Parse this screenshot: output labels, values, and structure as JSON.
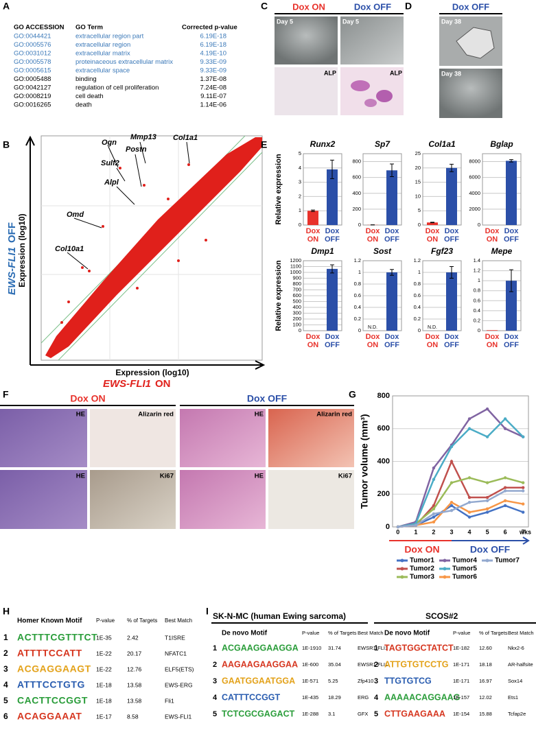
{
  "panel_letters": [
    "A",
    "B",
    "C",
    "D",
    "E",
    "F",
    "G",
    "H",
    "I"
  ],
  "go_table": {
    "headers": [
      "GO ACCESSION",
      "GO Term",
      "Corrected p-value"
    ],
    "rows": [
      [
        "GO:0044421",
        "extracellular region part",
        "6.19E-18"
      ],
      [
        "GO:0005576",
        "extracellular region",
        "6.19E-18"
      ],
      [
        "GO:0031012",
        "extracellular matrix",
        "4.19E-10"
      ],
      [
        "GO:0005578",
        "proteinaceous extracellular matrix",
        "9.33E-09"
      ],
      [
        "GO:0005615",
        "extracellular space",
        "9.33E-09"
      ],
      [
        "GO:0005488",
        "binding",
        "1.37E-08"
      ],
      [
        "GO:0042127",
        "regulation of cell proliferation",
        "7.24E-08"
      ],
      [
        "GO:0008219",
        "cell death",
        "9.11E-07"
      ],
      [
        "GO:0016265",
        "death",
        "1.14E-06"
      ]
    ],
    "highlight_color": "#3a78b8"
  },
  "scatter": {
    "genes": [
      "Ogn",
      "Mmp13",
      "Col1a1",
      "Sulf2",
      "Postn",
      "Alpl",
      "Omd",
      "Col10a1"
    ],
    "x_label": "Expression (log10)",
    "x_gene": "EWS-FLI1",
    "x_state": "ON",
    "y_label": "Expression (log10)",
    "y_gene": "EWS-FLI1",
    "y_state": "OFF"
  },
  "micrographs": {
    "c_headers": [
      "Dox ON",
      "Dox OFF"
    ],
    "c_labels": [
      "Day 5",
      "Day 5",
      "ALP",
      "ALP"
    ],
    "d_header": "Dox OFF",
    "d_labels": [
      "Day 38",
      "Day 38"
    ]
  },
  "histology": {
    "headers": [
      "Dox ON",
      "Dox OFF"
    ],
    "labels": [
      "HE",
      "Alizarin red",
      "HE",
      "Ki67",
      "HE",
      "Alizarin red",
      "HE",
      "Ki67"
    ]
  },
  "chart_data": [
    {
      "type": "bar",
      "title": "Runx2",
      "y_label": "Relative expression",
      "categories": [
        "Dox ON",
        "Dox OFF"
      ],
      "values": [
        1.0,
        3.9
      ],
      "errors": [
        0.05,
        0.65
      ],
      "colors": [
        "#e8322b",
        "#2b4fa8"
      ],
      "ylim": [
        0,
        5
      ],
      "yticks": [
        0,
        1,
        2,
        3,
        4,
        5
      ],
      "grid": true
    },
    {
      "type": "bar",
      "title": "Sp7",
      "categories": [
        "Dox ON",
        "Dox OFF"
      ],
      "values": [
        2,
        690
      ],
      "errors": [
        1,
        80
      ],
      "colors": [
        "#e8322b",
        "#2b4fa8"
      ],
      "ylim": [
        0,
        900
      ],
      "yticks": [
        0,
        200,
        400,
        600,
        800
      ],
      "grid": true
    },
    {
      "type": "bar",
      "title": "Col1a1",
      "categories": [
        "Dox ON",
        "Dox OFF"
      ],
      "values": [
        0.9,
        20
      ],
      "errors": [
        0.1,
        1.3
      ],
      "colors": [
        "#e8322b",
        "#2b4fa8"
      ],
      "ylim": [
        0,
        25
      ],
      "yticks": [
        0,
        5,
        10,
        15,
        20,
        25
      ],
      "grid": true
    },
    {
      "type": "bar",
      "title": "Bglap",
      "categories": [
        "Dox ON",
        "Dox OFF"
      ],
      "values": [
        2,
        8100
      ],
      "errors": [
        0,
        150
      ],
      "colors": [
        "#e8322b",
        "#2b4fa8"
      ],
      "ylim": [
        0,
        9000
      ],
      "yticks": [
        0,
        2000,
        4000,
        6000,
        8000
      ],
      "grid": true
    },
    {
      "type": "bar",
      "title": "Dmp1",
      "y_label": "Relative expression",
      "categories": [
        "Dox ON",
        "Dox OFF"
      ],
      "values": [
        0,
        1060
      ],
      "errors": [
        0,
        70
      ],
      "colors": [
        "#e8322b",
        "#2b4fa8"
      ],
      "ylim": [
        0,
        1200
      ],
      "yticks": [
        0,
        100,
        200,
        300,
        400,
        500,
        600,
        700,
        800,
        900,
        1000,
        1100,
        1200
      ],
      "grid": true
    },
    {
      "type": "bar",
      "title": "Sost",
      "categories": [
        "Dox ON",
        "Dox OFF"
      ],
      "values": [
        null,
        1.0
      ],
      "value_labels": [
        "N.D.",
        null
      ],
      "errors": [
        null,
        0.05
      ],
      "colors": [
        "#e8322b",
        "#2b4fa8"
      ],
      "ylim": [
        0,
        1.2
      ],
      "yticks": [
        0,
        0.2,
        0.4,
        0.6,
        0.8,
        1,
        1.2
      ],
      "grid": true
    },
    {
      "type": "bar",
      "title": "Fgf23",
      "categories": [
        "Dox ON",
        "Dox OFF"
      ],
      "values": [
        null,
        1.0
      ],
      "value_labels": [
        "N.D.",
        null
      ],
      "errors": [
        null,
        0.1
      ],
      "colors": [
        "#e8322b",
        "#2b4fa8"
      ],
      "ylim": [
        0,
        1.2
      ],
      "yticks": [
        0,
        0.2,
        0.4,
        0.6,
        0.8,
        1,
        1.2
      ],
      "grid": true
    },
    {
      "type": "bar",
      "title": "Mepe",
      "categories": [
        "Dox ON",
        "Dox OFF"
      ],
      "values": [
        0.01,
        1.0
      ],
      "errors": [
        0,
        0.22
      ],
      "colors": [
        "#e8322b",
        "#2b4fa8"
      ],
      "ylim": [
        0,
        1.4
      ],
      "yticks": [
        0,
        0.2,
        0.4,
        0.6,
        0.8,
        1,
        1.2,
        1.4
      ],
      "grid": true
    },
    {
      "type": "line",
      "y_label": "Tumor volume (mm³)",
      "x_unit": "wks",
      "x": [
        0,
        1,
        2,
        3,
        4,
        5,
        6,
        7
      ],
      "xlim": [
        -0.3,
        7.3
      ],
      "xticks": [
        0,
        1,
        2,
        3,
        4,
        5,
        6,
        7
      ],
      "ylim": [
        0,
        800
      ],
      "yticks": [
        0,
        200,
        400,
        600,
        800
      ],
      "grid": true,
      "phases": [
        {
          "name": "Dox ON",
          "color": "#e8322b"
        },
        {
          "name": "Dox OFF",
          "color": "#2b4fa8"
        }
      ],
      "series": [
        {
          "name": "Tumor1",
          "color": "#4472c4",
          "values": [
            0,
            10,
            60,
            130,
            60,
            90,
            130,
            90
          ]
        },
        {
          "name": "Tumor2",
          "color": "#c0504d",
          "values": [
            0,
            10,
            130,
            400,
            180,
            180,
            240,
            240
          ]
        },
        {
          "name": "Tumor3",
          "color": "#9bbb59",
          "values": [
            0,
            20,
            110,
            270,
            300,
            270,
            300,
            270
          ]
        },
        {
          "name": "Tumor4",
          "color": "#8064a2",
          "values": [
            0,
            30,
            360,
            500,
            660,
            720,
            600,
            550
          ]
        },
        {
          "name": "Tumor5",
          "color": "#4bacc6",
          "values": [
            0,
            20,
            290,
            490,
            600,
            550,
            660,
            550
          ]
        },
        {
          "name": "Tumor6",
          "color": "#f79646",
          "values": [
            0,
            10,
            30,
            150,
            90,
            110,
            160,
            140
          ]
        },
        {
          "name": "Tumor7",
          "color": "#93a9cf",
          "values": [
            0,
            10,
            80,
            100,
            150,
            160,
            220,
            220
          ]
        }
      ]
    }
  ],
  "homer": {
    "headers": [
      "Homer Known Motif",
      "P-value",
      "% of Targets",
      "Best Match"
    ],
    "rows": [
      [
        "1",
        "ACTTTCGTTTCT",
        "1E-35",
        "2.42",
        "T1ISRE"
      ],
      [
        "2",
        "ATTTTCCATT",
        "1E-22",
        "20.17",
        "NFATC1"
      ],
      [
        "3",
        "ACGAGGAAGT",
        "1E-22",
        "12.76",
        "ELF5(ETS)"
      ],
      [
        "4",
        "ATTTCCTGTG",
        "1E-18",
        "13.58",
        "EWS-ERG"
      ],
      [
        "5",
        "CACTTCCGGT",
        "1E-18",
        "13.58",
        "Fli1"
      ],
      [
        "6",
        "ACAGGAAAT",
        "1E-17",
        "8.58",
        "EWS-FLI1"
      ]
    ]
  },
  "denovo": [
    {
      "title": "SK-N-MC (human Ewing sarcoma)",
      "headers": [
        "De novo Motif",
        "P-value",
        "% of Targets",
        "Best Match"
      ],
      "rows": [
        [
          "1",
          "ACGAAGGAAGGA",
          "1E-1910",
          "31.74",
          "EWSR1-FLI1"
        ],
        [
          "2",
          "AAGAAGAAGGAA",
          "1E-600",
          "35.04",
          "EWSR1-FLI1"
        ],
        [
          "3",
          "GAATGGAATGGA",
          "1E-571",
          "5.25",
          "Zfp410"
        ],
        [
          "4",
          "CATTTCCGGT",
          "1E-435",
          "18.29",
          "ERG"
        ],
        [
          "5",
          "TCTCGCGAGACT",
          "1E-288",
          "3.1",
          "GFX"
        ]
      ]
    },
    {
      "title": "SCOS#2",
      "headers": [
        "De novo Motif",
        "P-value",
        "% of Targets",
        "Best Match"
      ],
      "rows": [
        [
          "1",
          "TAGTGGCTATCT",
          "1E-182",
          "12.60",
          "Nkx2-6"
        ],
        [
          "2",
          "ATTGTGTCCTG",
          "1E-171",
          "18.18",
          "AR-halfsite"
        ],
        [
          "3",
          "TTGTGTCG",
          "1E-171",
          "16.97",
          "Sox14"
        ],
        [
          "4",
          "AAAAACAGGAAG",
          "1E-157",
          "12.02",
          "Ets1"
        ],
        [
          "5",
          "CTTGAAGAAA",
          "1E-154",
          "15.88",
          "Tcfap2e"
        ]
      ]
    }
  ]
}
